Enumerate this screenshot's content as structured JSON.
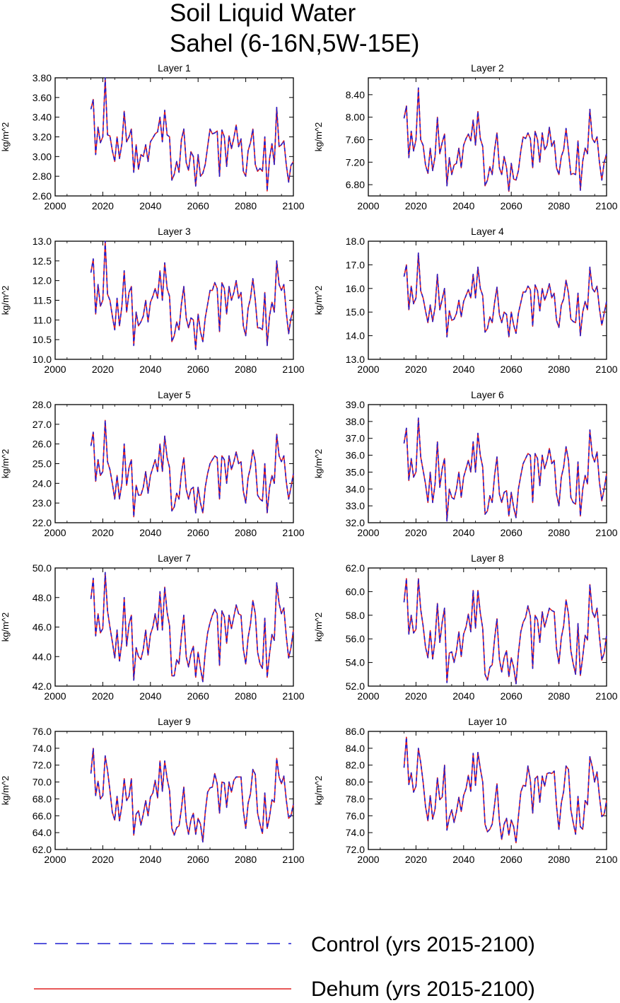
{
  "title": {
    "line1": "Soil Liquid Water",
    "line2": "Sahel (6-16N,5W-15E)"
  },
  "legend": {
    "control": "Control (yrs 2015-2100)",
    "dehum": "Dehum (yrs 2015-2100)"
  },
  "colors": {
    "control": "#1f1fd0",
    "dehum": "#e02020",
    "axis": "#000000"
  },
  "chart_data": [
    {
      "type": "line",
      "title": "Layer 1",
      "ylabel": "kg/m^2",
      "xlim": [
        2000,
        2100
      ],
      "xticks": [
        2000,
        2020,
        2040,
        2060,
        2080,
        2100
      ],
      "ylim": [
        2.6,
        3.8
      ],
      "yticks": [
        "2.60",
        "2.80",
        "3.00",
        "3.20",
        "3.40",
        "3.60",
        "3.80"
      ],
      "x_start": 2015,
      "values": [
        3.48,
        3.58,
        3.02,
        3.3,
        3.14,
        3.2,
        3.8,
        3.22,
        3.21,
        3.06,
        2.95,
        3.2,
        2.98,
        3.13,
        3.46,
        3.15,
        3.2,
        3.28,
        2.84,
        3.12,
        2.87,
        3.02,
        3.0,
        3.12,
        2.95,
        3.15,
        3.19,
        3.23,
        3.25,
        3.4,
        3.15,
        3.47,
        3.22,
        3.2,
        2.76,
        2.82,
        2.95,
        2.84,
        3.17,
        3.28,
        2.94,
        2.86,
        3.05,
        3.0,
        2.7,
        3.02,
        2.8,
        2.83,
        2.92,
        3.1,
        3.28,
        3.23,
        3.24,
        3.26,
        2.8,
        3.27,
        3.2,
        2.9,
        3.21,
        3.08,
        3.19,
        3.32,
        3.1,
        3.18,
        2.85,
        2.8,
        3.06,
        3.14,
        3.28,
        2.92,
        2.85,
        2.88,
        2.85,
        3.2,
        2.65,
        2.98,
        3.13,
        2.92,
        3.5,
        3.1,
        3.12,
        3.16,
        2.92,
        2.74,
        2.91,
        2.95
      ],
      "series": [
        {
          "name": "Control (yrs 2015-2100)",
          "style": "dashed"
        },
        {
          "name": "Dehum (yrs 2015-2100)",
          "style": "solid"
        }
      ]
    },
    {
      "type": "line",
      "title": "Layer 2",
      "ylabel": "kg/m^2",
      "xlim": [
        2000,
        2100
      ],
      "xticks": [
        2000,
        2020,
        2040,
        2060,
        2080,
        2100
      ],
      "ylim": [
        6.6,
        8.7
      ],
      "yticks": [
        "6.80",
        "7.20",
        "7.60",
        "8.00",
        "8.40"
      ],
      "x_start": 2015,
      "values": [
        7.98,
        8.2,
        7.28,
        7.75,
        7.4,
        7.6,
        8.52,
        7.6,
        7.5,
        7.15,
        7.0,
        7.45,
        7.05,
        7.3,
        8.0,
        7.35,
        7.55,
        7.7,
        6.78,
        7.28,
        6.98,
        7.15,
        7.18,
        7.45,
        7.1,
        7.5,
        7.62,
        7.7,
        7.58,
        7.95,
        7.5,
        8.1,
        7.62,
        7.48,
        6.78,
        6.88,
        7.12,
        6.98,
        7.42,
        7.72,
        7.1,
        6.98,
        7.3,
        7.1,
        6.68,
        7.18,
        6.9,
        6.88,
        7.05,
        7.4,
        7.65,
        7.62,
        7.72,
        7.62,
        7.1,
        7.75,
        7.6,
        7.2,
        7.72,
        7.42,
        7.5,
        7.82,
        7.48,
        7.58,
        7.1,
        6.98,
        7.3,
        7.42,
        7.8,
        7.4,
        6.98,
        7.0,
        6.98,
        7.58,
        6.7,
        7.22,
        7.45,
        7.35,
        8.14,
        7.62,
        7.55,
        7.65,
        7.2,
        6.88,
        7.2,
        7.35
      ],
      "series": [
        {
          "name": "Control (yrs 2015-2100)",
          "style": "dashed"
        },
        {
          "name": "Dehum (yrs 2015-2100)",
          "style": "solid"
        }
      ]
    },
    {
      "type": "line",
      "title": "Layer 3",
      "ylabel": "kg/m^2",
      "xlim": [
        2000,
        2100
      ],
      "xticks": [
        2000,
        2020,
        2040,
        2060,
        2080,
        2100
      ],
      "ylim": [
        10.0,
        13.0
      ],
      "yticks": [
        "10.0",
        "10.5",
        "11.0",
        "11.5",
        "12.0",
        "12.5",
        "13.0"
      ],
      "x_start": 2015,
      "values": [
        12.2,
        12.55,
        11.15,
        11.9,
        11.35,
        11.5,
        13.0,
        11.65,
        11.5,
        11.1,
        10.75,
        11.55,
        10.85,
        11.35,
        12.25,
        11.2,
        11.7,
        11.85,
        10.35,
        11.2,
        10.85,
        10.95,
        11.1,
        11.5,
        10.95,
        11.45,
        11.6,
        11.8,
        11.55,
        12.25,
        11.5,
        12.45,
        11.8,
        11.6,
        10.45,
        10.6,
        10.95,
        10.75,
        11.4,
        11.85,
        11.05,
        10.8,
        11.05,
        11.0,
        10.25,
        11.15,
        10.7,
        10.45,
        11.05,
        11.4,
        11.75,
        11.75,
        11.95,
        11.8,
        10.7,
        11.95,
        11.8,
        11.15,
        11.85,
        11.5,
        11.7,
        12.0,
        11.55,
        11.7,
        10.85,
        10.6,
        11.3,
        11.55,
        12.05,
        11.5,
        10.8,
        10.8,
        10.75,
        11.7,
        10.35,
        11.1,
        11.45,
        11.2,
        12.5,
        11.9,
        11.75,
        11.9,
        11.2,
        10.65,
        11.05,
        11.3
      ],
      "series": [
        {
          "name": "Control (yrs 2015-2100)",
          "style": "dashed"
        },
        {
          "name": "Dehum (yrs 2015-2100)",
          "style": "solid"
        }
      ]
    },
    {
      "type": "line",
      "title": "Layer 4",
      "ylabel": "kg/m^2",
      "xlim": [
        2000,
        2100
      ],
      "xticks": [
        2000,
        2020,
        2040,
        2060,
        2080,
        2100
      ],
      "ylim": [
        13.0,
        18.0
      ],
      "yticks": [
        "13.0",
        "14.0",
        "15.0",
        "16.0",
        "17.0",
        "18.0"
      ],
      "x_start": 2015,
      "values": [
        16.5,
        17.0,
        15.1,
        16.1,
        15.35,
        15.6,
        17.5,
        15.9,
        15.6,
        15.05,
        14.55,
        15.3,
        14.6,
        15.2,
        16.6,
        15.1,
        15.55,
        16.0,
        13.95,
        15.05,
        14.65,
        14.7,
        14.95,
        15.5,
        14.8,
        15.45,
        15.7,
        15.95,
        15.6,
        16.6,
        15.6,
        16.9,
        16.0,
        15.7,
        14.15,
        14.3,
        14.8,
        14.55,
        15.4,
        16.05,
        14.9,
        14.55,
        15.0,
        14.9,
        13.95,
        15.0,
        14.45,
        14.1,
        14.95,
        15.4,
        15.85,
        15.85,
        16.1,
        15.95,
        14.4,
        16.15,
        15.9,
        15.05,
        16.0,
        15.5,
        15.8,
        16.2,
        15.6,
        15.8,
        14.65,
        14.35,
        15.3,
        15.55,
        16.35,
        15.8,
        14.7,
        14.6,
        14.55,
        15.8,
        14.0,
        15.0,
        15.45,
        15.1,
        16.9,
        16.0,
        15.85,
        16.1,
        15.15,
        14.45,
        14.95,
        15.45
      ],
      "series": [
        {
          "name": "Control (yrs 2015-2100)",
          "style": "dashed"
        },
        {
          "name": "Dehum (yrs 2015-2100)",
          "style": "solid"
        }
      ]
    },
    {
      "type": "line",
      "title": "Layer 5",
      "ylabel": "kg/m^2",
      "xlim": [
        2000,
        2100
      ],
      "xticks": [
        2000,
        2020,
        2040,
        2060,
        2080,
        2100
      ],
      "ylim": [
        22.0,
        28.0
      ],
      "yticks": [
        "22.0",
        "23.0",
        "24.0",
        "25.0",
        "26.0",
        "27.0",
        "28.0"
      ],
      "x_start": 2015,
      "values": [
        25.9,
        26.6,
        24.1,
        25.2,
        24.4,
        24.6,
        27.2,
        25.1,
        24.7,
        24.0,
        23.2,
        24.4,
        23.2,
        24.0,
        26.0,
        23.9,
        24.8,
        25.2,
        22.3,
        23.9,
        23.4,
        23.4,
        23.8,
        24.6,
        23.5,
        24.4,
        24.8,
        25.2,
        24.6,
        26.0,
        24.6,
        26.4,
        25.3,
        24.8,
        22.6,
        22.8,
        23.5,
        23.2,
        24.5,
        25.3,
        23.7,
        23.2,
        23.7,
        23.8,
        22.5,
        23.8,
        23.0,
        22.5,
        23.8,
        24.5,
        25.0,
        25.2,
        25.4,
        25.3,
        23.2,
        25.4,
        25.2,
        24.0,
        25.4,
        24.7,
        25.1,
        25.6,
        25.0,
        25.1,
        23.6,
        23.0,
        24.3,
        24.8,
        25.7,
        25.1,
        23.4,
        23.2,
        23.1,
        25.0,
        22.5,
        23.8,
        24.4,
        24.0,
        26.5,
        25.4,
        25.1,
        25.4,
        24.1,
        23.2,
        23.8,
        24.5
      ],
      "series": [
        {
          "name": "Control (yrs 2015-2100)",
          "style": "dashed"
        },
        {
          "name": "Dehum (yrs 2015-2100)",
          "style": "solid"
        }
      ]
    },
    {
      "type": "line",
      "title": "Layer 6",
      "ylabel": "kg/m^2",
      "xlim": [
        2000,
        2100
      ],
      "xticks": [
        2000,
        2020,
        2040,
        2060,
        2080,
        2100
      ],
      "ylim": [
        32.0,
        39.0
      ],
      "yticks": [
        "32.0",
        "33.0",
        "34.0",
        "35.0",
        "36.0",
        "37.0",
        "38.0",
        "39.0"
      ],
      "x_start": 2015,
      "values": [
        36.7,
        37.6,
        34.5,
        35.8,
        34.7,
        35.0,
        38.2,
        35.9,
        35.1,
        34.3,
        33.2,
        35.0,
        33.2,
        34.3,
        36.8,
        34.1,
        35.2,
        35.8,
        32.1,
        34.0,
        33.5,
        33.4,
        34.0,
        35.0,
        33.5,
        34.7,
        35.2,
        35.7,
        35.0,
        36.8,
        35.0,
        37.3,
        36.0,
        35.3,
        32.5,
        32.7,
        33.6,
        33.2,
        34.8,
        35.9,
        33.7,
        33.2,
        33.8,
        33.9,
        32.4,
        33.8,
        32.9,
        32.3,
        34.0,
        34.8,
        35.5,
        35.8,
        36.1,
        36.0,
        33.2,
        36.1,
        35.8,
        34.2,
        36.0,
        35.2,
        35.7,
        36.4,
        35.5,
        35.7,
        33.7,
        33.0,
        34.7,
        35.3,
        36.5,
        35.7,
        33.5,
        33.2,
        33.1,
        35.6,
        32.4,
        34.0,
        34.8,
        34.3,
        37.5,
        36.0,
        35.6,
        36.2,
        34.4,
        33.3,
        34.0,
        34.9
      ],
      "series": [
        {
          "name": "Control (yrs 2015-2100)",
          "style": "dashed"
        },
        {
          "name": "Dehum (yrs 2015-2100)",
          "style": "solid"
        }
      ]
    },
    {
      "type": "line",
      "title": "Layer 7",
      "ylabel": "kg/m^2",
      "xlim": [
        2000,
        2100
      ],
      "xticks": [
        2000,
        2020,
        2040,
        2060,
        2080,
        2100
      ],
      "ylim": [
        42.0,
        50.0
      ],
      "yticks": [
        "42.0",
        "44.0",
        "46.0",
        "48.0",
        "50.0"
      ],
      "x_start": 2015,
      "values": [
        47.9,
        49.3,
        45.4,
        46.9,
        45.6,
        45.9,
        49.7,
        47.1,
        46.0,
        45.0,
        43.9,
        45.8,
        43.7,
        45.0,
        48.0,
        44.7,
        46.2,
        46.8,
        42.4,
        44.6,
        44.0,
        43.8,
        44.5,
        45.8,
        44.1,
        45.5,
        46.0,
        46.9,
        45.8,
        48.4,
        45.8,
        48.7,
        47.0,
        46.1,
        42.7,
        42.7,
        43.8,
        43.5,
        45.4,
        46.8,
        44.0,
        43.3,
        44.2,
        44.7,
        42.6,
        44.3,
        43.2,
        42.3,
        44.3,
        45.6,
        46.3,
        46.8,
        47.2,
        46.9,
        43.4,
        47.1,
        46.7,
        44.9,
        46.8,
        45.9,
        46.7,
        47.5,
        46.9,
        46.8,
        44.5,
        43.5,
        45.3,
        46.2,
        47.8,
        46.9,
        44.3,
        43.5,
        43.2,
        46.6,
        42.6,
        44.2,
        45.5,
        45.1,
        49.0,
        47.6,
        46.9,
        47.3,
        45.4,
        43.9,
        44.6,
        45.8
      ],
      "series": [
        {
          "name": "Control (yrs 2015-2100)",
          "style": "dashed"
        },
        {
          "name": "Dehum (yrs 2015-2100)",
          "style": "solid"
        }
      ]
    },
    {
      "type": "line",
      "title": "Layer 8",
      "ylabel": "kg/m^2",
      "xlim": [
        2000,
        2100
      ],
      "xticks": [
        2000,
        2020,
        2040,
        2060,
        2080,
        2100
      ],
      "ylim": [
        52.0,
        62.0
      ],
      "yticks": [
        "52.0",
        "54.0",
        "56.0",
        "58.0",
        "60.0",
        "62.0"
      ],
      "x_start": 2015,
      "values": [
        59.1,
        61.1,
        56.4,
        58.0,
        56.5,
        56.8,
        61.1,
        58.5,
        57.1,
        55.3,
        54.4,
        56.7,
        54.3,
        55.9,
        59.0,
        55.7,
        57.4,
        58.6,
        52.3,
        54.8,
        54.9,
        54.0,
        55.0,
        56.6,
        54.5,
        56.4,
        57.0,
        58.1,
        56.6,
        60.1,
        56.9,
        60.1,
        58.2,
        56.9,
        53.0,
        52.5,
        53.6,
        53.8,
        56.0,
        57.7,
        54.3,
        53.2,
        54.4,
        55.0,
        52.8,
        54.4,
        53.6,
        52.2,
        54.8,
        56.6,
        57.4,
        57.8,
        58.8,
        57.9,
        53.5,
        58.0,
        57.6,
        55.7,
        58.3,
        57.0,
        57.8,
        58.6,
        58.4,
        58.3,
        55.2,
        53.9,
        56.1,
        57.1,
        59.3,
        58.1,
        55.0,
        53.9,
        53.0,
        57.3,
        52.9,
        54.5,
        56.3,
        55.9,
        60.6,
        58.3,
        57.8,
        58.6,
        56.2,
        54.2,
        54.8,
        56.3
      ],
      "series": [
        {
          "name": "Control (yrs 2015-2100)",
          "style": "dashed"
        },
        {
          "name": "Dehum (yrs 2015-2100)",
          "style": "solid"
        }
      ]
    },
    {
      "type": "line",
      "title": "Layer 9",
      "ylabel": "kg/m^2",
      "xlim": [
        2000,
        2100
      ],
      "xticks": [
        2000,
        2020,
        2040,
        2060,
        2080,
        2100
      ],
      "ylim": [
        62.0,
        76.0
      ],
      "yticks": [
        "62.0",
        "64.0",
        "66.0",
        "68.0",
        "70.0",
        "72.0",
        "74.0",
        "76.0"
      ],
      "x_start": 2015,
      "values": [
        71.0,
        74.0,
        68.4,
        70.1,
        68.0,
        68.4,
        73.1,
        71.4,
        69.0,
        66.4,
        65.5,
        68.3,
        65.4,
        67.2,
        70.4,
        67.8,
        68.3,
        70.4,
        63.7,
        66.2,
        66.6,
        64.9,
        66.2,
        67.8,
        66.0,
        68.2,
        68.7,
        70.2,
        68.1,
        72.5,
        68.9,
        72.5,
        70.4,
        69.0,
        64.5,
        63.7,
        64.6,
        64.8,
        66.8,
        69.4,
        65.3,
        63.8,
        65.5,
        66.3,
        63.8,
        65.7,
        65.0,
        62.9,
        66.4,
        68.8,
        69.3,
        69.4,
        71.0,
        69.8,
        66.3,
        70.0,
        69.9,
        67.0,
        70.0,
        68.8,
        70.2,
        70.6,
        70.6,
        70.6,
        66.6,
        64.5,
        67.5,
        68.6,
        71.5,
        70.9,
        66.3,
        65.0,
        63.9,
        68.7,
        64.5,
        65.9,
        67.9,
        67.6,
        72.8,
        70.6,
        69.8,
        70.7,
        67.9,
        65.7,
        66.0,
        67.4
      ],
      "series": [
        {
          "name": "Control (yrs 2015-2100)",
          "style": "dashed"
        },
        {
          "name": "Dehum (yrs 2015-2100)",
          "style": "solid"
        }
      ]
    },
    {
      "type": "line",
      "title": "Layer 10",
      "ylabel": "kg/m^2",
      "xlim": [
        2000,
        2100
      ],
      "xticks": [
        2000,
        2020,
        2040,
        2060,
        2080,
        2100
      ],
      "ylim": [
        72.0,
        86.0
      ],
      "yticks": [
        "72.0",
        "74.0",
        "76.0",
        "78.0",
        "80.0",
        "82.0",
        "84.0",
        "86.0"
      ],
      "x_start": 2015,
      "values": [
        81.7,
        85.3,
        79.7,
        81.1,
        78.8,
        79.5,
        84.0,
        82.3,
        80.0,
        77.1,
        75.4,
        78.4,
        75.6,
        76.8,
        80.5,
        77.9,
        78.2,
        82.0,
        74.3,
        75.8,
        76.7,
        75.2,
        76.5,
        78.2,
        76.5,
        78.4,
        79.2,
        80.8,
        78.9,
        83.4,
        79.6,
        83.5,
        81.6,
        80.0,
        75.0,
        74.1,
        74.4,
        75.0,
        77.3,
        79.8,
        75.4,
        73.2,
        75.0,
        75.7,
        73.7,
        75.5,
        74.7,
        72.8,
        75.9,
        78.8,
        79.6,
        79.5,
        81.9,
        80.2,
        76.3,
        80.4,
        80.7,
        77.6,
        80.7,
        79.5,
        81.0,
        81.1,
        81.0,
        81.3,
        77.2,
        74.4,
        77.5,
        78.9,
        81.9,
        81.5,
        76.7,
        75.2,
        73.8,
        78.3,
        74.7,
        74.4,
        77.8,
        77.3,
        83.0,
        81.8,
        80.0,
        81.2,
        78.3,
        75.9,
        76.2,
        77.8
      ],
      "series": [
        {
          "name": "Control (yrs 2015-2100)",
          "style": "dashed"
        },
        {
          "name": "Dehum (yrs 2015-2100)",
          "style": "solid"
        }
      ]
    }
  ]
}
